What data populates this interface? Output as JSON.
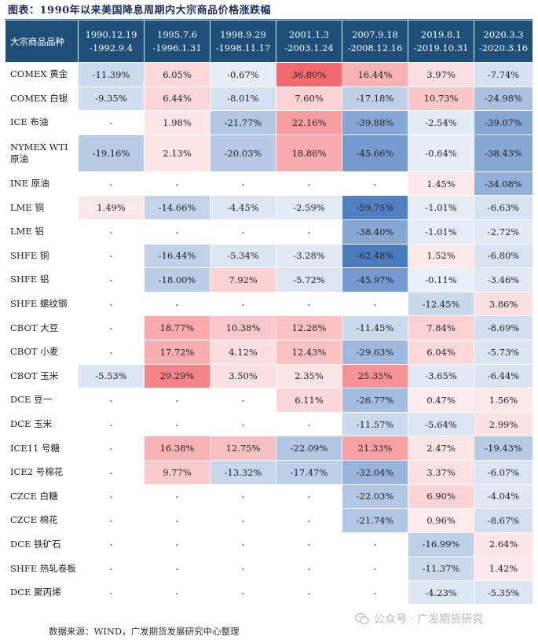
{
  "title": "图表：1990年以来美国降息周期内大宗商品价格涨跌幅",
  "header": {
    "corner": "大宗商品品种",
    "periods": [
      {
        "start": "1990.12.19",
        "end": "-1992.9.4"
      },
      {
        "start": "1995.7.6",
        "end": "-1996.1.31"
      },
      {
        "start": "1998.9.29",
        "end": "-1998.11.17"
      },
      {
        "start": "2001.1.3",
        "end": "-2003.1.24"
      },
      {
        "start": "2007.9.18",
        "end": "-2008.12.16"
      },
      {
        "start": "2019.8.1",
        "end": "-2019.10.31"
      },
      {
        "start": "2020.3.3",
        "end": "-2020.3.16"
      }
    ]
  },
  "rows": [
    {
      "name": "COMEX 黄金",
      "cells": [
        "-11.39%",
        "6.05%",
        "-0.67%",
        "36.80%",
        "16.44%",
        "3.97%",
        "-7.74%"
      ]
    },
    {
      "name": "COMEX 白银",
      "cells": [
        "-9.35%",
        "6.44%",
        "-8.01%",
        "7.60%",
        "-17.18%",
        "10.73%",
        "-24.98%"
      ]
    },
    {
      "name": "ICE 布油",
      "cells": [
        "-",
        "1.98%",
        "-21.77%",
        "22.16%",
        "-39.88%",
        "-2.54%",
        "-39.07%"
      ]
    },
    {
      "name": "NYMEX WTI 原油",
      "tall": true,
      "cells": [
        "-19.16%",
        "2.13%",
        "-20.03%",
        "18.86%",
        "-45.66%",
        "-0.64%",
        "-38.43%"
      ]
    },
    {
      "name": "INE 原油",
      "cells": [
        "-",
        "-",
        "-",
        "-",
        "-",
        "1.45%",
        "-34.08%"
      ]
    },
    {
      "name": "LME 铜",
      "cells": [
        "1.49%",
        "-14.66%",
        "-4.45%",
        "-2.59%",
        "-59.75%",
        "-1.01%",
        "-6.63%"
      ]
    },
    {
      "name": "LME 铝",
      "cells": [
        "-",
        "-",
        "-",
        "-",
        "-38.40%",
        "-1.01%",
        "-2.72%"
      ]
    },
    {
      "name": "SHFE 铜",
      "cells": [
        "-",
        "-16.44%",
        "-5.34%",
        "-3.28%",
        "-62.48%",
        "1.52%",
        "-6.80%"
      ]
    },
    {
      "name": "SHFE 铝",
      "cells": [
        "-",
        "-18.00%",
        "7.92%",
        "-5.72%",
        "-45.97%",
        "-0.11%",
        "-3.46%"
      ]
    },
    {
      "name": "SHFE 螺纹钢",
      "cells": [
        "-",
        "-",
        "-",
        "-",
        "-",
        "-12.45%",
        "3.86%"
      ]
    },
    {
      "name": "CBOT 大豆",
      "cells": [
        "-",
        "18.77%",
        "10.38%",
        "12.28%",
        "-11.45%",
        "7.84%",
        "-8.69%"
      ]
    },
    {
      "name": "CBOT 小麦",
      "cells": [
        "-",
        "17.72%",
        "4.12%",
        "12.43%",
        "-29.63%",
        "6.04%",
        "-5.73%"
      ]
    },
    {
      "name": "CBOT 玉米",
      "cells": [
        "-5.53%",
        "29.29%",
        "3.50%",
        "2.35%",
        "25.35%",
        "-3.65%",
        "-6.44%"
      ]
    },
    {
      "name": "DCE 豆一",
      "cells": [
        "-",
        "-",
        "-",
        "6.11%",
        "-26.77%",
        "0.47%",
        "1.56%"
      ]
    },
    {
      "name": "DCE 玉米",
      "cells": [
        "-",
        "-",
        "-",
        "-",
        "-11.57%",
        "-5.64%",
        "2.99%"
      ]
    },
    {
      "name": "ICE11 号糖",
      "cells": [
        "-",
        "16.38%",
        "12.75%",
        "-22.09%",
        "21.33%",
        "2.47%",
        "-19.43%"
      ]
    },
    {
      "name": "ICE2 号棉花",
      "cells": [
        "-",
        "9.77%",
        "-13.32%",
        "-17.47%",
        "-32.04%",
        "3.37%",
        "-6.07%"
      ]
    },
    {
      "name": "CZCE 白糖",
      "cells": [
        "-",
        "-",
        "-",
        "-",
        "-22.03%",
        "6.90%",
        "-4.04%"
      ]
    },
    {
      "name": "CZCE 棉花",
      "cells": [
        "-",
        "-",
        "-",
        "-",
        "-21.74%",
        "0.96%",
        "-8.67%"
      ]
    },
    {
      "name": "DCE 铁矿石",
      "cells": [
        "-",
        "-",
        "-",
        "-",
        "-",
        "-16.99%",
        "2.64%"
      ]
    },
    {
      "name": "SHFE 热轧卷板",
      "cells": [
        "-",
        "-",
        "-",
        "-",
        "-",
        "-11.37%",
        "1.42%"
      ]
    },
    {
      "name": "DCE 聚丙烯",
      "cells": [
        "-",
        "-",
        "-",
        "-",
        "-",
        "-4.23%",
        "-5.35%"
      ]
    }
  ],
  "source": "数据来源：WIND，广发期货发展研究中心整理",
  "watermark": "公众号 · 广发期货研究",
  "colors": {
    "header_bg": "#1f4e79",
    "positive_max": "#f26a6f",
    "negative_max": "#4a7cc0",
    "neutral": "#ffffff"
  }
}
